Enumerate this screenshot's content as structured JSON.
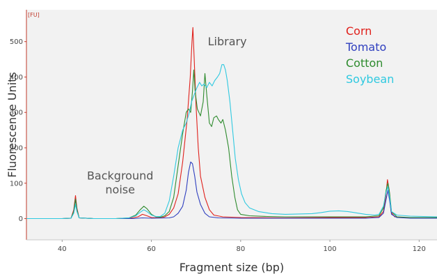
{
  "chart_data": {
    "type": "line",
    "title": "",
    "xlabel": "Fragment size (bp)",
    "ylabel": "Fluorescence Units",
    "y_unit_label": "[FU]",
    "xlim": [
      32,
      124
    ],
    "ylim": [
      -60,
      590
    ],
    "x_ticks": [
      40,
      60,
      80,
      100,
      120
    ],
    "y_ticks": [
      0,
      100,
      200,
      300,
      400,
      500
    ],
    "grid": false,
    "legend_position": "top-right",
    "annotations": [
      {
        "name": "library-annotation",
        "lines": [
          "Library"
        ],
        "x": 77,
        "y": 490
      },
      {
        "name": "background-noise-annotation",
        "lines": [
          "Background",
          "noise"
        ],
        "x": 53,
        "y": 110
      }
    ],
    "series": [
      {
        "name": "Corn",
        "color": "#e0201b",
        "points": [
          [
            32,
            0
          ],
          [
            40,
            0
          ],
          [
            42,
            1
          ],
          [
            42.6,
            25
          ],
          [
            43,
            65
          ],
          [
            43.3,
            30
          ],
          [
            43.8,
            2
          ],
          [
            47,
            0
          ],
          [
            52,
            0
          ],
          [
            55,
            1
          ],
          [
            57,
            5
          ],
          [
            58,
            12
          ],
          [
            59,
            8
          ],
          [
            60,
            3
          ],
          [
            62,
            2
          ],
          [
            63,
            5
          ],
          [
            64,
            12
          ],
          [
            65,
            30
          ],
          [
            66,
            70
          ],
          [
            67,
            160
          ],
          [
            68,
            280
          ],
          [
            68.7,
            400
          ],
          [
            69.1,
            500
          ],
          [
            69.3,
            540
          ],
          [
            69.6,
            450
          ],
          [
            70,
            320
          ],
          [
            70.5,
            200
          ],
          [
            71,
            120
          ],
          [
            72,
            60
          ],
          [
            73,
            25
          ],
          [
            74,
            10
          ],
          [
            76,
            5
          ],
          [
            80,
            3
          ],
          [
            90,
            2
          ],
          [
            100,
            3
          ],
          [
            108,
            3
          ],
          [
            111,
            5
          ],
          [
            112,
            20
          ],
          [
            112.5,
            60
          ],
          [
            112.9,
            110
          ],
          [
            113.3,
            80
          ],
          [
            113.7,
            20
          ],
          [
            114.5,
            5
          ],
          [
            118,
            2
          ],
          [
            124,
            2
          ]
        ]
      },
      {
        "name": "Tomato",
        "color": "#2f3fbf",
        "points": [
          [
            32,
            0
          ],
          [
            40,
            0
          ],
          [
            42,
            1
          ],
          [
            42.6,
            20
          ],
          [
            43,
            55
          ],
          [
            43.3,
            25
          ],
          [
            43.8,
            2
          ],
          [
            47,
            0
          ],
          [
            52,
            0
          ],
          [
            56,
            0
          ],
          [
            57,
            1
          ],
          [
            58,
            2
          ],
          [
            60,
            1
          ],
          [
            64,
            2
          ],
          [
            65,
            5
          ],
          [
            66,
            15
          ],
          [
            67,
            35
          ],
          [
            67.8,
            80
          ],
          [
            68.3,
            130
          ],
          [
            68.8,
            160
          ],
          [
            69.2,
            155
          ],
          [
            69.7,
            120
          ],
          [
            70.2,
            75
          ],
          [
            71,
            40
          ],
          [
            72,
            15
          ],
          [
            73,
            5
          ],
          [
            75,
            2
          ],
          [
            80,
            1
          ],
          [
            90,
            1
          ],
          [
            100,
            1
          ],
          [
            108,
            1
          ],
          [
            111,
            3
          ],
          [
            112,
            15
          ],
          [
            112.6,
            55
          ],
          [
            113,
            80
          ],
          [
            113.4,
            50
          ],
          [
            113.8,
            12
          ],
          [
            115,
            3
          ],
          [
            118,
            1
          ],
          [
            124,
            1
          ]
        ]
      },
      {
        "name": "Cotton",
        "color": "#2e8b2e",
        "points": [
          [
            32,
            0
          ],
          [
            40,
            0
          ],
          [
            42,
            1
          ],
          [
            42.6,
            20
          ],
          [
            43,
            55
          ],
          [
            43.3,
            25
          ],
          [
            43.8,
            2
          ],
          [
            47,
            0
          ],
          [
            52,
            0
          ],
          [
            55,
            2
          ],
          [
            56.5,
            10
          ],
          [
            57.5,
            25
          ],
          [
            58.3,
            35
          ],
          [
            59,
            28
          ],
          [
            60,
            12
          ],
          [
            61,
            5
          ],
          [
            62,
            4
          ],
          [
            63,
            8
          ],
          [
            64,
            20
          ],
          [
            65,
            60
          ],
          [
            66,
            150
          ],
          [
            67,
            240
          ],
          [
            67.8,
            300
          ],
          [
            68.3,
            310
          ],
          [
            68.8,
            300
          ],
          [
            69.2,
            360
          ],
          [
            69.5,
            420
          ],
          [
            69.8,
            360
          ],
          [
            70.3,
            310
          ],
          [
            71,
            290
          ],
          [
            71.6,
            330
          ],
          [
            72,
            410
          ],
          [
            72.4,
            350
          ],
          [
            73,
            270
          ],
          [
            73.5,
            260
          ],
          [
            74,
            285
          ],
          [
            74.6,
            290
          ],
          [
            75,
            280
          ],
          [
            75.6,
            270
          ],
          [
            76,
            280
          ],
          [
            76.6,
            250
          ],
          [
            77.3,
            200
          ],
          [
            78,
            120
          ],
          [
            78.7,
            60
          ],
          [
            79.3,
            25
          ],
          [
            80,
            12
          ],
          [
            82,
            8
          ],
          [
            86,
            6
          ],
          [
            90,
            5
          ],
          [
            95,
            5
          ],
          [
            100,
            5
          ],
          [
            105,
            5
          ],
          [
            108,
            5
          ],
          [
            111,
            8
          ],
          [
            112,
            30
          ],
          [
            112.6,
            80
          ],
          [
            113,
            100
          ],
          [
            113.4,
            70
          ],
          [
            113.8,
            20
          ],
          [
            115,
            5
          ],
          [
            118,
            3
          ],
          [
            124,
            3
          ]
        ]
      },
      {
        "name": "Soybean",
        "color": "#2fc9e0",
        "points": [
          [
            32,
            0
          ],
          [
            40,
            0
          ],
          [
            42,
            1
          ],
          [
            42.6,
            15
          ],
          [
            43,
            40
          ],
          [
            43.3,
            20
          ],
          [
            43.8,
            2
          ],
          [
            47,
            0
          ],
          [
            52,
            0
          ],
          [
            55,
            2
          ],
          [
            56.5,
            8
          ],
          [
            57.5,
            18
          ],
          [
            58.3,
            25
          ],
          [
            59,
            20
          ],
          [
            60,
            10
          ],
          [
            61,
            6
          ],
          [
            62,
            6
          ],
          [
            63,
            15
          ],
          [
            64,
            50
          ],
          [
            65,
            120
          ],
          [
            66,
            200
          ],
          [
            67,
            250
          ],
          [
            67.8,
            270
          ],
          [
            68.5,
            300
          ],
          [
            69,
            330
          ],
          [
            69.6,
            350
          ],
          [
            70.2,
            370
          ],
          [
            70.8,
            385
          ],
          [
            71.3,
            375
          ],
          [
            71.8,
            380
          ],
          [
            72.4,
            370
          ],
          [
            73,
            385
          ],
          [
            73.6,
            375
          ],
          [
            74.2,
            390
          ],
          [
            74.8,
            400
          ],
          [
            75.3,
            410
          ],
          [
            75.8,
            435
          ],
          [
            76.2,
            435
          ],
          [
            76.6,
            420
          ],
          [
            77,
            390
          ],
          [
            77.6,
            330
          ],
          [
            78.2,
            250
          ],
          [
            78.8,
            170
          ],
          [
            79.5,
            110
          ],
          [
            80.2,
            70
          ],
          [
            81,
            45
          ],
          [
            82,
            30
          ],
          [
            84,
            20
          ],
          [
            87,
            14
          ],
          [
            90,
            12
          ],
          [
            93,
            13
          ],
          [
            96,
            14
          ],
          [
            98,
            17
          ],
          [
            100,
            21
          ],
          [
            102,
            22
          ],
          [
            104,
            20
          ],
          [
            106,
            16
          ],
          [
            108,
            12
          ],
          [
            110,
            10
          ],
          [
            111,
            12
          ],
          [
            112,
            35
          ],
          [
            112.6,
            75
          ],
          [
            113,
            90
          ],
          [
            113.4,
            60
          ],
          [
            113.8,
            20
          ],
          [
            115,
            10
          ],
          [
            118,
            7
          ],
          [
            124,
            5
          ]
        ]
      }
    ]
  }
}
